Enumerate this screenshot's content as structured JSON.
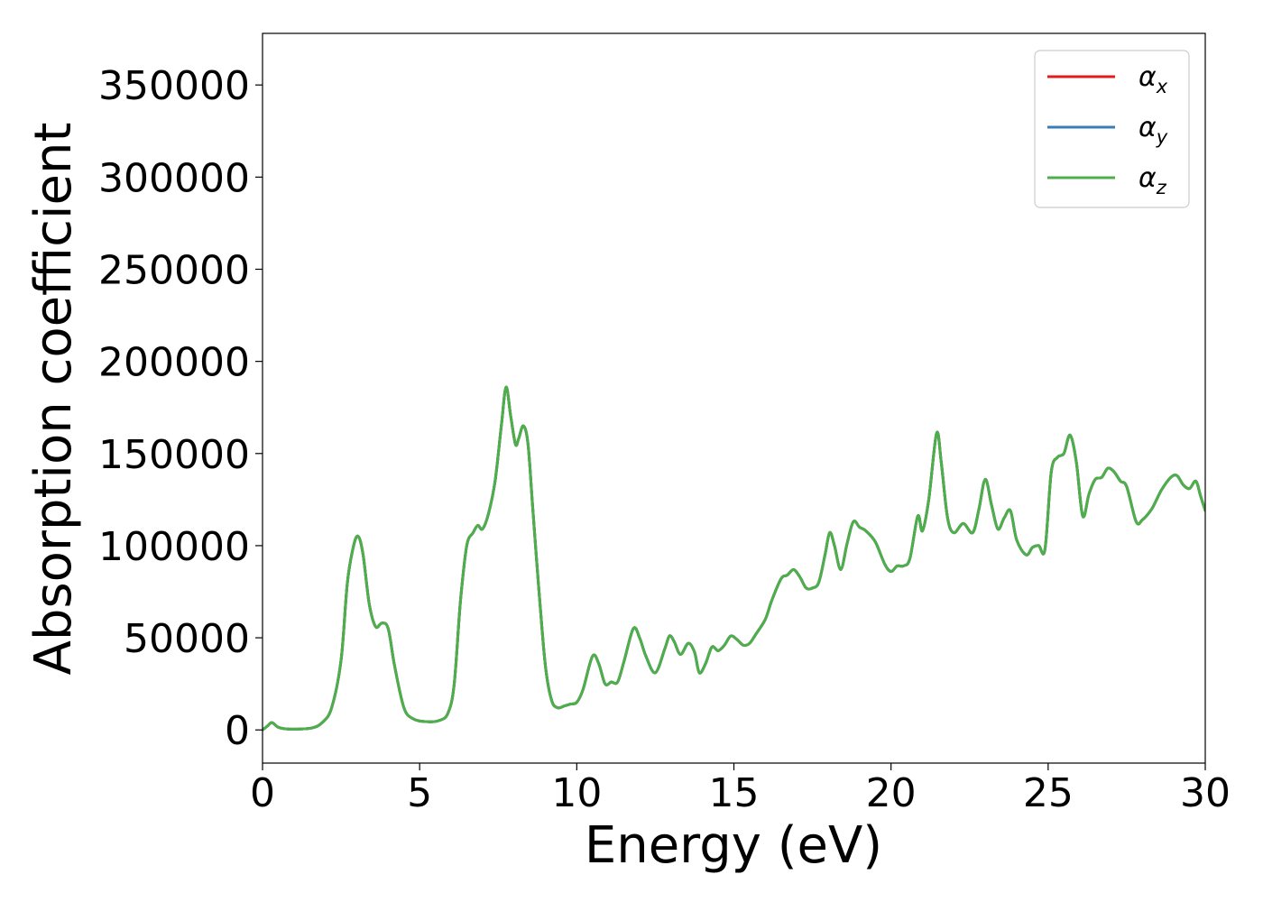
{
  "chart_data": {
    "type": "line",
    "xlabel": "Energy (eV)",
    "ylabel": "Absorption coefficient",
    "xlim": [
      0,
      30
    ],
    "ylim": [
      -18000,
      378000
    ],
    "xticks": [
      0,
      5,
      10,
      15,
      20,
      25,
      30
    ],
    "xtick_labels": [
      "0",
      "5",
      "10",
      "15",
      "20",
      "25",
      "30"
    ],
    "yticks": [
      0,
      50000,
      100000,
      150000,
      200000,
      250000,
      300000,
      350000
    ],
    "ytick_labels": [
      "0",
      "50000",
      "100000",
      "150000",
      "200000",
      "250000",
      "300000",
      "350000"
    ],
    "grid": false,
    "legend_position": "top-right",
    "series": [
      {
        "name": "α_x",
        "legend_symbol": "α",
        "legend_subscript": "x",
        "color": "#e41a1c",
        "x": [
          0.0,
          0.15,
          0.3,
          0.5,
          0.8,
          1.2,
          1.6,
          1.9,
          2.2,
          2.5,
          2.7,
          2.9,
          3.05,
          3.2,
          3.4,
          3.6,
          3.8,
          4.0,
          4.2,
          4.5,
          4.8,
          5.2,
          5.6,
          5.9,
          6.1,
          6.3,
          6.5,
          6.7,
          6.85,
          7.0,
          7.2,
          7.4,
          7.6,
          7.75,
          7.9,
          8.05,
          8.15,
          8.3,
          8.45,
          8.6,
          8.8,
          9.0,
          9.2,
          9.4,
          9.6,
          9.8,
          10.0,
          10.2,
          10.5,
          10.7,
          10.9,
          11.1,
          11.3,
          11.5,
          11.8,
          12.0,
          12.2,
          12.5,
          12.8,
          12.95,
          13.1,
          13.3,
          13.55,
          13.75,
          13.9,
          14.1,
          14.3,
          14.5,
          14.7,
          14.9,
          15.1,
          15.3,
          15.5,
          15.7,
          16.0,
          16.2,
          16.5,
          16.7,
          16.9,
          17.1,
          17.3,
          17.5,
          17.7,
          17.9,
          18.05,
          18.2,
          18.4,
          18.6,
          18.8,
          19.0,
          19.2,
          19.5,
          19.8,
          20.0,
          20.2,
          20.4,
          20.6,
          20.85,
          21.0,
          21.2,
          21.45,
          21.6,
          21.8,
          22.0,
          22.3,
          22.6,
          22.8,
          23.0,
          23.2,
          23.4,
          23.6,
          23.8,
          24.0,
          24.3,
          24.5,
          24.7,
          24.9,
          25.1,
          25.3,
          25.5,
          25.7,
          25.9,
          26.1,
          26.3,
          26.5,
          26.7,
          26.9,
          27.1,
          27.3,
          27.5,
          27.8,
          28.0,
          28.3,
          28.6,
          28.9,
          29.1,
          29.3,
          29.5,
          29.7,
          29.85,
          30.0
        ],
        "y": [
          0,
          2000,
          4000,
          1500,
          500,
          500,
          1200,
          4000,
          12000,
          38000,
          80000,
          100000,
          105000,
          95000,
          68000,
          56000,
          58000,
          55000,
          35000,
          12000,
          6000,
          4500,
          5000,
          9000,
          25000,
          70000,
          100000,
          107000,
          111000,
          109000,
          118000,
          135000,
          165000,
          186000,
          170000,
          155000,
          158000,
          165000,
          155000,
          120000,
          75000,
          35000,
          16000,
          12000,
          13000,
          14000,
          15000,
          22000,
          40000,
          36000,
          25000,
          26000,
          26000,
          37000,
          55000,
          50000,
          40000,
          31000,
          44000,
          51000,
          48000,
          41000,
          47000,
          42000,
          31000,
          36000,
          45000,
          43000,
          46000,
          51000,
          49000,
          46000,
          47000,
          52000,
          60000,
          70000,
          82000,
          84000,
          87000,
          83000,
          77000,
          77000,
          80000,
          95000,
          107000,
          100000,
          87000,
          101000,
          113000,
          110000,
          108000,
          102000,
          90000,
          86000,
          89000,
          89000,
          93000,
          116000,
          108000,
          125000,
          161000,
          145000,
          115000,
          107000,
          112000,
          107000,
          120000,
          136000,
          122000,
          109000,
          115000,
          119000,
          103000,
          95000,
          99000,
          100000,
          98000,
          140000,
          148000,
          150000,
          160000,
          145000,
          116000,
          128000,
          136000,
          137000,
          142000,
          140000,
          135000,
          132000,
          113000,
          114000,
          120000,
          130000,
          137000,
          138000,
          133000,
          131000,
          135000,
          127000,
          119000
        ]
      },
      {
        "name": "α_y",
        "legend_symbol": "α",
        "legend_subscript": "y",
        "color": "#377eb8",
        "x": [
          0.0,
          0.15,
          0.3,
          0.5,
          0.8,
          1.2,
          1.6,
          1.9,
          2.2,
          2.5,
          2.7,
          2.9,
          3.05,
          3.2,
          3.4,
          3.6,
          3.8,
          4.0,
          4.2,
          4.5,
          4.8,
          5.2,
          5.6,
          5.9,
          6.1,
          6.3,
          6.5,
          6.7,
          6.85,
          7.0,
          7.2,
          7.4,
          7.6,
          7.75,
          7.9,
          8.05,
          8.15,
          8.3,
          8.45,
          8.6,
          8.8,
          9.0,
          9.2,
          9.4,
          9.6,
          9.8,
          10.0,
          10.2,
          10.5,
          10.7,
          10.9,
          11.1,
          11.3,
          11.5,
          11.8,
          12.0,
          12.2,
          12.5,
          12.8,
          12.95,
          13.1,
          13.3,
          13.55,
          13.75,
          13.9,
          14.1,
          14.3,
          14.5,
          14.7,
          14.9,
          15.1,
          15.3,
          15.5,
          15.7,
          16.0,
          16.2,
          16.5,
          16.7,
          16.9,
          17.1,
          17.3,
          17.5,
          17.7,
          17.9,
          18.05,
          18.2,
          18.4,
          18.6,
          18.8,
          19.0,
          19.2,
          19.5,
          19.8,
          20.0,
          20.2,
          20.4,
          20.6,
          20.85,
          21.0,
          21.2,
          21.45,
          21.6,
          21.8,
          22.0,
          22.3,
          22.6,
          22.8,
          23.0,
          23.2,
          23.4,
          23.6,
          23.8,
          24.0,
          24.3,
          24.5,
          24.7,
          24.9,
          25.1,
          25.3,
          25.5,
          25.7,
          25.9,
          26.1,
          26.3,
          26.5,
          26.7,
          26.9,
          27.1,
          27.3,
          27.5,
          27.8,
          28.0,
          28.3,
          28.6,
          28.9,
          29.1,
          29.3,
          29.5,
          29.7,
          29.85,
          30.0
        ],
        "y": [
          0,
          2000,
          4000,
          1500,
          500,
          500,
          1200,
          4000,
          12000,
          38000,
          80000,
          100000,
          105000,
          95000,
          68000,
          56000,
          58000,
          55000,
          35000,
          12000,
          6000,
          4500,
          5000,
          9000,
          25000,
          70000,
          100000,
          107000,
          111000,
          109000,
          118000,
          135000,
          165000,
          186000,
          170000,
          155000,
          158000,
          165000,
          155000,
          120000,
          75000,
          35000,
          16000,
          12000,
          13000,
          14000,
          15000,
          22000,
          40000,
          36000,
          25000,
          26000,
          26000,
          37000,
          55000,
          50000,
          40000,
          31000,
          44000,
          51000,
          48000,
          41000,
          47000,
          42000,
          31000,
          36000,
          45000,
          43000,
          46000,
          51000,
          49000,
          46000,
          47000,
          52000,
          60000,
          70000,
          82000,
          84000,
          87000,
          83000,
          77000,
          77000,
          80000,
          95000,
          107000,
          100000,
          87000,
          101000,
          113000,
          110000,
          108000,
          102000,
          90000,
          86000,
          89000,
          89000,
          93000,
          116000,
          108000,
          125000,
          161000,
          145000,
          115000,
          107000,
          112000,
          107000,
          120000,
          136000,
          122000,
          109000,
          115000,
          119000,
          103000,
          95000,
          99000,
          100000,
          98000,
          140000,
          148000,
          150000,
          160000,
          145000,
          116000,
          128000,
          136000,
          137000,
          142000,
          140000,
          135000,
          132000,
          113000,
          114000,
          120000,
          130000,
          137000,
          138000,
          133000,
          131000,
          135000,
          127000,
          119000
        ]
      },
      {
        "name": "α_z",
        "legend_symbol": "α",
        "legend_subscript": "z",
        "color": "#4daf4a",
        "x": [
          0.0,
          0.15,
          0.3,
          0.5,
          0.8,
          1.2,
          1.6,
          1.9,
          2.2,
          2.5,
          2.7,
          2.9,
          3.05,
          3.2,
          3.4,
          3.6,
          3.8,
          4.0,
          4.2,
          4.5,
          4.8,
          5.2,
          5.6,
          5.9,
          6.1,
          6.3,
          6.5,
          6.7,
          6.85,
          7.0,
          7.2,
          7.4,
          7.6,
          7.75,
          7.9,
          8.05,
          8.15,
          8.3,
          8.45,
          8.6,
          8.8,
          9.0,
          9.2,
          9.4,
          9.6,
          9.8,
          10.0,
          10.2,
          10.5,
          10.7,
          10.9,
          11.1,
          11.3,
          11.5,
          11.8,
          12.0,
          12.2,
          12.5,
          12.8,
          12.95,
          13.1,
          13.3,
          13.55,
          13.75,
          13.9,
          14.1,
          14.3,
          14.5,
          14.7,
          14.9,
          15.1,
          15.3,
          15.5,
          15.7,
          16.0,
          16.2,
          16.5,
          16.7,
          16.9,
          17.1,
          17.3,
          17.5,
          17.7,
          17.9,
          18.05,
          18.2,
          18.4,
          18.6,
          18.8,
          19.0,
          19.2,
          19.5,
          19.8,
          20.0,
          20.2,
          20.4,
          20.6,
          20.85,
          21.0,
          21.2,
          21.45,
          21.6,
          21.8,
          22.0,
          22.3,
          22.6,
          22.8,
          23.0,
          23.2,
          23.4,
          23.6,
          23.8,
          24.0,
          24.3,
          24.5,
          24.7,
          24.9,
          25.1,
          25.3,
          25.5,
          25.7,
          25.9,
          26.1,
          26.3,
          26.5,
          26.7,
          26.9,
          27.1,
          27.3,
          27.5,
          27.8,
          28.0,
          28.3,
          28.6,
          28.9,
          29.1,
          29.3,
          29.5,
          29.7,
          29.85,
          30.0
        ],
        "y": [
          0,
          2000,
          4000,
          1500,
          500,
          500,
          1200,
          4000,
          12000,
          38000,
          80000,
          100000,
          105000,
          95000,
          68000,
          56000,
          58000,
          55000,
          35000,
          12000,
          6000,
          4500,
          5000,
          9000,
          25000,
          70000,
          100000,
          107000,
          111000,
          109000,
          118000,
          135000,
          165000,
          186000,
          170000,
          155000,
          158000,
          165000,
          155000,
          120000,
          75000,
          35000,
          16000,
          12000,
          13000,
          14000,
          15000,
          22000,
          40000,
          36000,
          25000,
          26000,
          26000,
          37000,
          55000,
          50000,
          40000,
          31000,
          44000,
          51000,
          48000,
          41000,
          47000,
          42000,
          31000,
          36000,
          45000,
          43000,
          46000,
          51000,
          49000,
          46000,
          47000,
          52000,
          60000,
          70000,
          82000,
          84000,
          87000,
          83000,
          77000,
          77000,
          80000,
          95000,
          107000,
          100000,
          87000,
          101000,
          113000,
          110000,
          108000,
          102000,
          90000,
          86000,
          89000,
          89000,
          93000,
          116000,
          108000,
          125000,
          161000,
          145000,
          115000,
          107000,
          112000,
          107000,
          120000,
          136000,
          122000,
          109000,
          115000,
          119000,
          103000,
          95000,
          99000,
          100000,
          98000,
          140000,
          148000,
          150000,
          160000,
          145000,
          116000,
          128000,
          136000,
          137000,
          142000,
          140000,
          135000,
          132000,
          113000,
          114000,
          120000,
          130000,
          137000,
          138000,
          133000,
          131000,
          135000,
          127000,
          119000
        ]
      }
    ]
  }
}
